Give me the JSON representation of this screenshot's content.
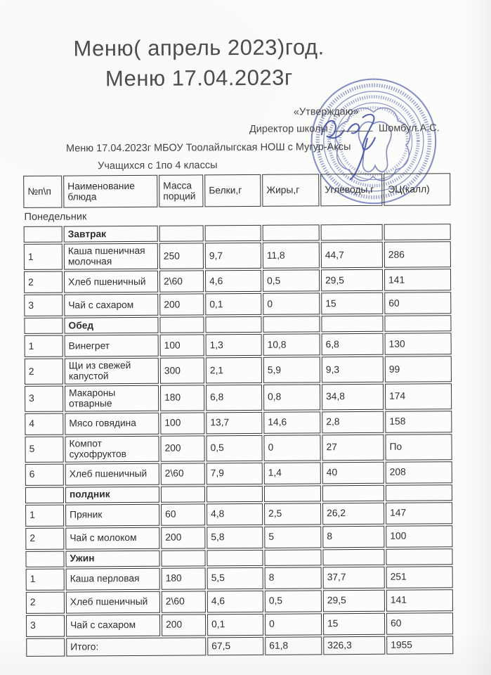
{
  "document": {
    "title_line1": "Меню( апрель  2023)год.",
    "title_line2": "Меню   17.04.2023г",
    "approval": {
      "quote": "«Утверждаю»",
      "role": "Директор школы",
      "signer": "Шомбул.А.С."
    },
    "subtitle_line1": "Меню   17.04.2023г МБОУ  Тоолайлыгская НОШ  с Мугур-Аксы",
    "subtitle_line2": "Учащихся с 1по 4 классы",
    "stamp_color": "#5a66b0",
    "signature_color": "#4353a5"
  },
  "table": {
    "columns": [
      "№п\\п",
      "Наименование блюда",
      "Масса порций",
      "Белки,г",
      "Жиры,г",
      "Углеводы,г",
      "ЭЦ(калл)"
    ],
    "rows": [
      {
        "type": "day",
        "name": "Понедельник"
      },
      {
        "type": "section",
        "name": "Завтрак"
      },
      {
        "type": "item",
        "num": "1",
        "name": "Каша пшеничная молочная",
        "mass": "250",
        "protein": "9,7",
        "fat": "11,8",
        "carbs": "44,7",
        "kcal": "286"
      },
      {
        "type": "item",
        "num": "2",
        "name": "Хлеб пшеничный",
        "mass": "2\\60",
        "protein": "4,6",
        "fat": "0,5",
        "carbs": "29,5",
        "kcal": "141"
      },
      {
        "type": "item",
        "num": "3",
        "name": "Чай с сахаром",
        "mass": "200",
        "protein": "0,1",
        "fat": "0",
        "carbs": "15",
        "kcal": "60"
      },
      {
        "type": "section",
        "name": "Обед"
      },
      {
        "type": "item",
        "num": "1",
        "name": "Винегрет",
        "mass": "100",
        "protein": "1,3",
        "fat": "10,8",
        "carbs": "6,8",
        "kcal": "130"
      },
      {
        "type": "item",
        "num": "2",
        "name": "Щи из свежей капустой",
        "mass": "300",
        "protein": "2,1",
        "fat": "5,9",
        "carbs": "9,3",
        "kcal": "99"
      },
      {
        "type": "item",
        "num": "3",
        "name": "Макароны отварные",
        "mass": "180",
        "protein": "6,8",
        "fat": "0,8",
        "carbs": "34,8",
        "kcal": "174"
      },
      {
        "type": "item",
        "num": "4",
        "name": "Мясо говядина",
        "mass": "100",
        "protein": "13,7",
        "fat": "14,6",
        "carbs": "2,8",
        "kcal": "158"
      },
      {
        "type": "item",
        "num": "5",
        "name": "Компот сухофруктов",
        "mass": "200",
        "protein": "0,5",
        "fat": "0",
        "carbs": "27",
        "kcal": "По"
      },
      {
        "type": "item",
        "num": "6",
        "name": "Хлеб пшеничный",
        "mass": "2\\60",
        "protein": "7,9",
        "fat": "1,4",
        "carbs": "40",
        "kcal": "208"
      },
      {
        "type": "section",
        "name": "полдник"
      },
      {
        "type": "item",
        "num": "1",
        "name": "Пряник",
        "mass": "60",
        "protein": "4,8",
        "fat": "2,5",
        "carbs": "26,2",
        "kcal": "147"
      },
      {
        "type": "item",
        "num": "2",
        "name": "Чай с молоком",
        "mass": "200",
        "protein": "5,8",
        "fat": "5",
        "carbs": "8",
        "kcal": "100"
      },
      {
        "type": "section",
        "name": "Ужин"
      },
      {
        "type": "item",
        "num": "1",
        "name": "Каша перловая",
        "mass": "180",
        "protein": "5,5",
        "fat": "8",
        "carbs": "37,7",
        "kcal": "251"
      },
      {
        "type": "item",
        "num": "2",
        "name": "Хлеб пшеничный",
        "mass": "2\\60",
        "protein": "4,6",
        "fat": "0,5",
        "carbs": "29,5",
        "kcal": "141"
      },
      {
        "type": "item",
        "num": "3",
        "name": "Чай с сахаром",
        "mass": "200",
        "protein": "0,1",
        "fat": "0",
        "carbs": "15",
        "kcal": "60"
      },
      {
        "type": "total",
        "name": "Итого:",
        "protein": "67,5",
        "fat": "61,8",
        "carbs": "326,3",
        "kcal": "1955"
      }
    ]
  }
}
